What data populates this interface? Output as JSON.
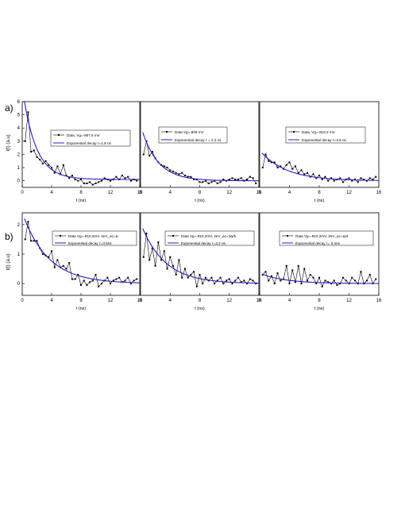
{
  "figure": {
    "row_labels": [
      "a)",
      "b)"
    ],
    "ylabel": "I(t) (a.u)",
    "xlabel": "t (ns)"
  },
  "chart_data": [
    {
      "type": "line",
      "row": 0,
      "col": 0,
      "xlim": [
        0,
        16
      ],
      "ylim": [
        -0.5,
        6
      ],
      "xticks": [
        0,
        4,
        8,
        12,
        16
      ],
      "yticks": [
        0,
        1,
        2,
        3,
        4,
        5,
        6
      ],
      "xlabel": "t (ns)",
      "ylabel": "I(t) (a.u)",
      "grid": false,
      "legend": "center",
      "series": [
        {
          "name": "Data, Vg=-907.6 mV",
          "color": "#000000",
          "markers": true,
          "x": [
            0.4,
            0.8,
            1.2,
            1.6,
            2,
            2.4,
            2.8,
            3.2,
            3.6,
            4,
            4.4,
            4.8,
            5.2,
            5.6,
            6,
            6.4,
            6.8,
            7.2,
            7.6,
            8,
            8.4,
            8.8,
            9.2,
            9.6,
            10,
            10.4,
            10.8,
            11.2,
            11.6,
            12,
            12.4,
            12.8,
            13.2,
            13.6,
            14,
            14.4,
            14.8,
            15.2,
            15.6
          ],
          "y": [
            3.0,
            5.2,
            2.2,
            2.3,
            1.8,
            1.6,
            1.3,
            1.5,
            1.2,
            1.0,
            0.6,
            1.1,
            0.5,
            1.2,
            0.4,
            0.2,
            0.4,
            0.1,
            0.0,
            0.1,
            -0.2,
            -0.2,
            -0.1,
            -0.3,
            -0.2,
            -0.1,
            0.0,
            0.2,
            0.1,
            0.0,
            0.1,
            0.3,
            0.1,
            0.4,
            0.2,
            0.3,
            0.0,
            0.1,
            0.0
          ]
        },
        {
          "name": "Exponential decay τ=1.8 ns",
          "color": "#2020c0",
          "markers": false,
          "fit": {
            "amplitude": 7.0,
            "tau": 1.8,
            "offset": 0.1
          }
        }
      ]
    },
    {
      "type": "line",
      "row": 0,
      "col": 1,
      "xlim": [
        0,
        16
      ],
      "ylim": [
        -0.5,
        6
      ],
      "xticks": [
        0,
        4,
        8,
        12,
        16
      ],
      "yticks": [],
      "xlabel": "t (ns)",
      "ylabel": "",
      "grid": false,
      "legend": "top-center",
      "series": [
        {
          "name": "Data Vg=-909 mV",
          "color": "#000000",
          "markers": true,
          "x": [
            0.4,
            0.8,
            1.2,
            1.6,
            2,
            2.4,
            2.8,
            3.2,
            3.6,
            4,
            4.4,
            4.8,
            5.2,
            5.6,
            6,
            6.4,
            6.8,
            7.2,
            7.6,
            8,
            8.4,
            8.8,
            9.2,
            9.6,
            10,
            10.4,
            10.8,
            11.2,
            11.6,
            12,
            12.4,
            12.8,
            13.2,
            13.6,
            14,
            14.4,
            14.8,
            15.2,
            15.6
          ],
          "y": [
            2.0,
            3.0,
            1.9,
            2.2,
            1.7,
            1.4,
            1.2,
            1.1,
            1.0,
            0.8,
            0.7,
            0.6,
            0.5,
            0.6,
            0.4,
            0.3,
            0.3,
            0.1,
            0.1,
            -0.1,
            -0.1,
            0.0,
            -0.2,
            -0.1,
            0.0,
            -0.2,
            -0.1,
            0.1,
            0.0,
            0.1,
            0.2,
            0.1,
            0.1,
            0.2,
            0.0,
            0.1,
            0.3,
            0.2,
            -0.2
          ]
        },
        {
          "name": "Exponential decay τ = 2.2 ns",
          "color": "#2020c0",
          "markers": false,
          "fit": {
            "amplitude": 4.2,
            "tau": 2.2,
            "offset": 0.0
          }
        }
      ]
    },
    {
      "type": "line",
      "row": 0,
      "col": 2,
      "xlim": [
        0,
        16
      ],
      "ylim": [
        -0.5,
        6
      ],
      "xticks": [
        0,
        4,
        8,
        12,
        16
      ],
      "yticks": [],
      "xlabel": "t (ns)",
      "ylabel": "",
      "grid": false,
      "legend": "top-center",
      "series": [
        {
          "name": "Data, Vg=-910.2 mV",
          "color": "#000000",
          "markers": true,
          "x": [
            0.4,
            0.8,
            1.2,
            1.6,
            2,
            2.4,
            2.8,
            3.2,
            3.6,
            4,
            4.4,
            4.8,
            5.2,
            5.6,
            6,
            6.4,
            6.8,
            7.2,
            7.6,
            8,
            8.4,
            8.8,
            9.2,
            9.6,
            10,
            10.4,
            10.8,
            11.2,
            11.6,
            12,
            12.4,
            12.8,
            13.2,
            13.6,
            14,
            14.4,
            14.8,
            15.2,
            15.6
          ],
          "y": [
            1.0,
            2.0,
            1.5,
            1.4,
            1.4,
            1.0,
            1.1,
            0.9,
            1.2,
            1.4,
            0.9,
            1.1,
            0.6,
            0.8,
            0.5,
            0.6,
            0.3,
            0.5,
            0.2,
            0.4,
            0.1,
            0.3,
            0.0,
            0.2,
            0.0,
            0.1,
            0.2,
            -0.1,
            0.1,
            0.2,
            0.0,
            0.1,
            -0.1,
            0.2,
            0.1,
            0.0,
            0.2,
            0.1,
            0.3
          ]
        },
        {
          "name": "Exponential decay τ=3.5 ns",
          "color": "#2020c0",
          "markers": false,
          "fit": {
            "amplitude": 2.3,
            "tau": 3.5,
            "offset": 0.0
          }
        }
      ]
    },
    {
      "type": "line",
      "row": 1,
      "col": 0,
      "xlim": [
        0,
        16
      ],
      "ylim": [
        -0.4,
        2.4
      ],
      "xticks": [
        0,
        4,
        8,
        12,
        16
      ],
      "yticks": [
        0,
        1,
        2
      ],
      "xlabel": "t (ns)",
      "ylabel": "I(t) (a.u)",
      "grid": false,
      "legend": "top-right",
      "series": [
        {
          "name": "Data Vg=-910.2mV, 2eV_ac=Δ",
          "color": "#000000",
          "markers": true,
          "x": [
            0.4,
            0.8,
            1.2,
            1.6,
            2,
            2.4,
            2.8,
            3.2,
            3.6,
            4,
            4.4,
            4.8,
            5.2,
            5.6,
            6,
            6.4,
            6.8,
            7.2,
            7.6,
            8,
            8.4,
            8.8,
            9.2,
            9.6,
            10,
            10.4,
            10.8,
            11.2,
            11.6,
            12,
            12.4,
            12.8,
            13.2,
            13.6,
            14,
            14.4,
            14.8,
            15.2,
            15.6
          ],
          "y": [
            1.5,
            2.1,
            1.45,
            1.45,
            1.45,
            1.2,
            1.0,
            0.95,
            0.9,
            1.1,
            0.55,
            0.8,
            0.55,
            0.6,
            0.5,
            0.7,
            0.15,
            0.15,
            0.3,
            -0.05,
            0.1,
            -0.05,
            0.05,
            0.1,
            0.3,
            -0.1,
            0.0,
            0.1,
            0.2,
            0.0,
            0.1,
            0.15,
            0.2,
            0.05,
            0.1,
            0.2,
            0.0,
            0.1,
            0.15
          ]
        },
        {
          "name": "Exponential decay τ=3.5ns",
          "color": "#2020c0",
          "markers": false,
          "fit": {
            "amplitude": 2.4,
            "tau": 3.5,
            "offset": 0.0
          }
        }
      ]
    },
    {
      "type": "line",
      "row": 1,
      "col": 1,
      "xlim": [
        0,
        16
      ],
      "ylim": [
        -0.4,
        2.4
      ],
      "xticks": [
        0,
        4,
        8,
        12,
        16
      ],
      "yticks": [],
      "xlabel": "t (ns)",
      "ylabel": "",
      "grid": false,
      "legend": "top-right",
      "series": [
        {
          "name": "Data Vg=-910.2mV, 2eV_ac=3Δ/5",
          "color": "#000000",
          "markers": true,
          "x": [
            0.4,
            0.8,
            1.2,
            1.6,
            2,
            2.4,
            2.8,
            3.2,
            3.6,
            4,
            4.4,
            4.8,
            5.2,
            5.6,
            6,
            6.4,
            6.8,
            7.2,
            7.6,
            8,
            8.4,
            8.8,
            9.2,
            9.6,
            10,
            10.4,
            10.8,
            11.2,
            11.6,
            12,
            12.4,
            12.8,
            13.2,
            13.6,
            14,
            14.4,
            14.8,
            15.2,
            15.6
          ],
          "y": [
            0.9,
            1.7,
            0.8,
            1.2,
            0.6,
            1.4,
            0.8,
            1.1,
            0.5,
            0.9,
            0.6,
            0.3,
            0.8,
            0.2,
            0.5,
            0.2,
            0.3,
            0.4,
            -0.1,
            0.3,
            0.0,
            0.2,
            0.1,
            0.2,
            0.0,
            0.1,
            0.2,
            0.0,
            0.1,
            0.15,
            0.0,
            0.1,
            0.2,
            0.05,
            0.1,
            0.0,
            0.15,
            0.1,
            0.0
          ]
        },
        {
          "name": "Exponential decay τ=3.2 ns",
          "color": "#2020c0",
          "markers": false,
          "fit": {
            "amplitude": 2.05,
            "tau": 3.2,
            "offset": 0.0
          }
        }
      ]
    },
    {
      "type": "line",
      "row": 1,
      "col": 2,
      "xlim": [
        0,
        16
      ],
      "ylim": [
        -0.4,
        2.4
      ],
      "xticks": [
        0,
        4,
        8,
        12,
        16
      ],
      "yticks": [],
      "xlabel": "t (ns)",
      "ylabel": "",
      "grid": false,
      "legend": "top-right",
      "series": [
        {
          "name": "Data Vg=-910.2mV, 2eV_ac=Δ/4",
          "color": "#000000",
          "markers": true,
          "x": [
            0.4,
            0.8,
            1.2,
            1.6,
            2,
            2.4,
            2.8,
            3.2,
            3.6,
            4,
            4.4,
            4.8,
            5.2,
            5.6,
            6,
            6.4,
            6.8,
            7.2,
            7.6,
            8,
            8.4,
            8.8,
            9.2,
            9.6,
            10,
            10.4,
            10.8,
            11.2,
            11.6,
            12,
            12.4,
            12.8,
            13.2,
            13.6,
            14,
            14.4,
            14.8,
            15.2,
            15.6
          ],
          "y": [
            0.3,
            0.4,
            0.1,
            0.25,
            0.0,
            0.35,
            0.1,
            0.15,
            0.6,
            0.0,
            0.45,
            0.05,
            0.6,
            0.0,
            0.5,
            0.1,
            0.3,
            0.2,
            0.0,
            0.2,
            -0.1,
            0.1,
            0.05,
            0.0,
            0.1,
            -0.05,
            0.0,
            0.2,
            0.1,
            0.0,
            0.2,
            0.1,
            0.0,
            0.4,
            0.0,
            0.1,
            0.3,
            0.0,
            0.15
          ]
        },
        {
          "name": "Exponential decay τ= 3.4ns",
          "color": "#2020c0",
          "markers": false,
          "fit": {
            "amplitude": 0.35,
            "tau": 3.4,
            "offset": 0.0
          }
        }
      ]
    }
  ]
}
